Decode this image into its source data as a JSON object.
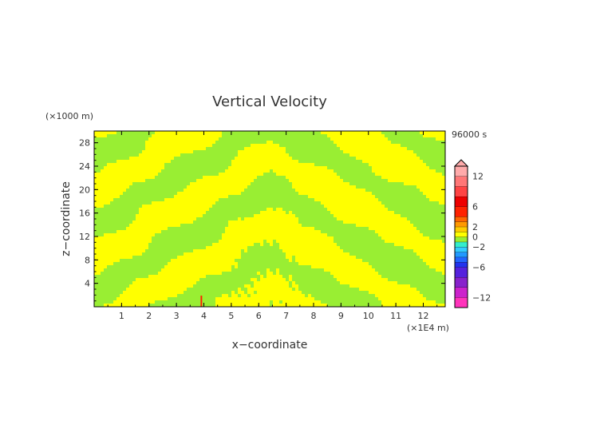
{
  "chart_data": {
    "type": "heatmap",
    "title": "Vertical Velocity",
    "xlabel": "x−coordinate",
    "ylabel": "z−coordinate",
    "x_unit": "(×1E4 m)",
    "y_unit": "(×1000 m)",
    "time_label": "96000 s",
    "xlim": [
      0,
      12.8
    ],
    "ylim": [
      0,
      30
    ],
    "x_ticks": [
      "1",
      "2",
      "3",
      "4",
      "5",
      "6",
      "7",
      "8",
      "9",
      "10",
      "11",
      "12"
    ],
    "y_ticks": [
      "4",
      "8",
      "12",
      "16",
      "20",
      "24",
      "28"
    ],
    "colorbar": {
      "tick_labels": [
        "12",
        "6",
        "2",
        "0",
        "−2",
        "−6",
        "−12"
      ],
      "min": -14,
      "max": 14,
      "extend_top": true,
      "levels": [
        {
          "lo": -14,
          "hi": -12,
          "color": "#ff33bb"
        },
        {
          "lo": -12,
          "hi": -10,
          "color": "#cc22cc"
        },
        {
          "lo": -10,
          "hi": -8,
          "color": "#8822cc"
        },
        {
          "lo": -8,
          "hi": -6,
          "color": "#5522dd"
        },
        {
          "lo": -6,
          "hi": -5,
          "color": "#2233ee"
        },
        {
          "lo": -5,
          "hi": -4,
          "color": "#2266ff"
        },
        {
          "lo": -4,
          "hi": -3,
          "color": "#2299ff"
        },
        {
          "lo": -3,
          "hi": -2,
          "color": "#33ccff"
        },
        {
          "lo": -2,
          "hi": -1,
          "color": "#33eecc"
        },
        {
          "lo": -1,
          "hi": 0,
          "color": "#99ee33"
        },
        {
          "lo": 0,
          "hi": 1,
          "color": "#ffff00"
        },
        {
          "lo": 1,
          "hi": 2,
          "color": "#ffcc00"
        },
        {
          "lo": 2,
          "hi": 3,
          "color": "#ff9900"
        },
        {
          "lo": 3,
          "hi": 4,
          "color": "#ff6600"
        },
        {
          "lo": 4,
          "hi": 6,
          "color": "#ff2200"
        },
        {
          "lo": 6,
          "hi": 8,
          "color": "#ee0000"
        },
        {
          "lo": 8,
          "hi": 10,
          "color": "#ff4444"
        },
        {
          "lo": 10,
          "hi": 12,
          "color": "#ff7777"
        },
        {
          "lo": 12,
          "hi": 14,
          "color": "#ffaaaa"
        }
      ]
    },
    "field": {
      "dominant_colors": [
        "#99ee33",
        "#ffff00"
      ],
      "accent_color": "#ff2200"
    }
  }
}
